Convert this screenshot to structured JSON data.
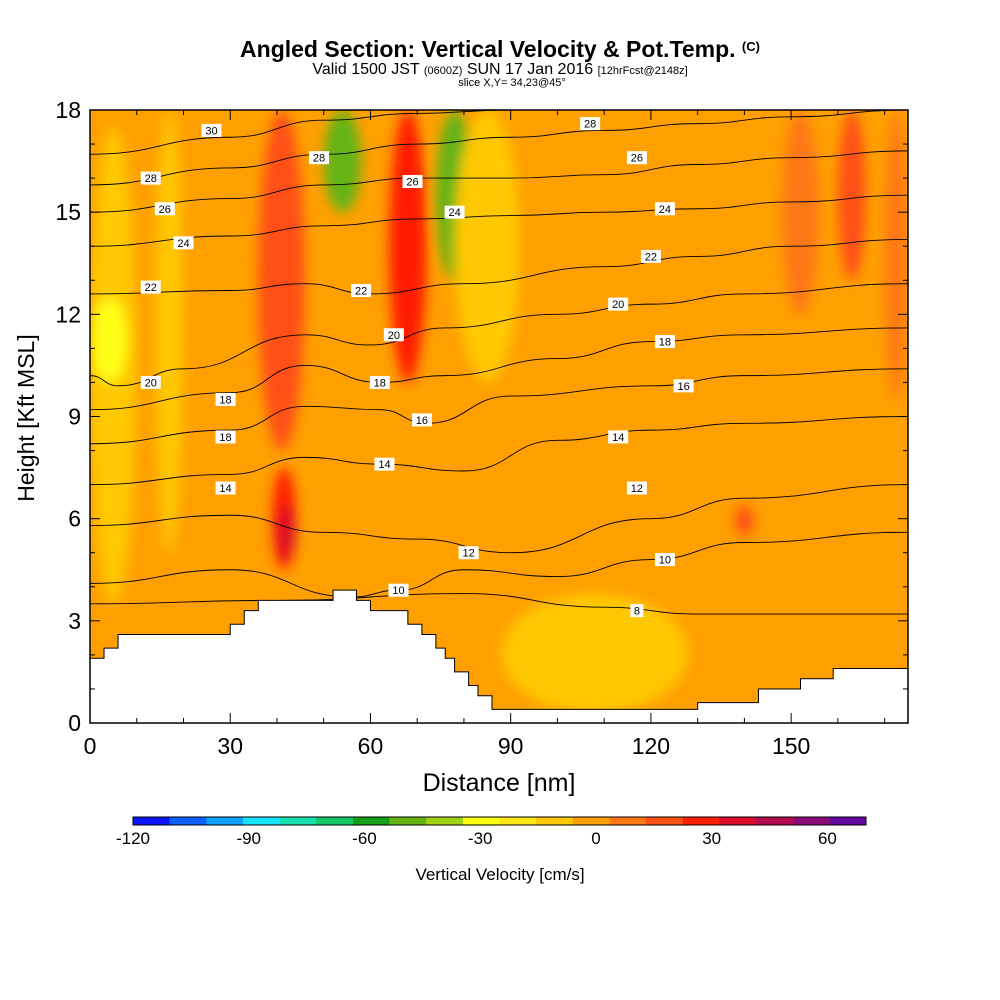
{
  "header": {
    "title_main": "Angled Section: Vertical Velocity & Pot.Temp.",
    "title_unit": "(C)",
    "subtitle_a": "Valid 1500 JST",
    "subtitle_b": "(0600Z)",
    "subtitle_c": "SUN 17 Jan 2016",
    "subtitle_d": "[12hrFcst@2148z]",
    "slice": "slice X,Y= 34,23@45°"
  },
  "chart_data": {
    "type": "heatmap",
    "xlabel": "Distance [nm]",
    "ylabel": "Height [Kft MSL]",
    "xlim": [
      0,
      175
    ],
    "ylim": [
      0,
      18
    ],
    "x_ticks": [
      0,
      30,
      60,
      90,
      120,
      150
    ],
    "y_ticks": [
      0,
      3,
      6,
      9,
      12,
      15,
      18
    ],
    "colorbar": {
      "label": "Vertical Velocity [cm/s]",
      "min": -120,
      "max": 70,
      "step": 10,
      "tick_values": [
        -120,
        -90,
        -60,
        -30,
        0,
        30,
        60
      ],
      "colors": [
        "#0a14ff",
        "#0a5fff",
        "#0aa0ff",
        "#14e6ff",
        "#14e0b0",
        "#14c864",
        "#14a014",
        "#64b414",
        "#a0d214",
        "#ffff14",
        "#ffe614",
        "#ffc800",
        "#ffa000",
        "#ff7814",
        "#ff5014",
        "#ff1e00",
        "#dc0a28",
        "#b40a50",
        "#8c0a78",
        "#640aa0"
      ]
    },
    "background_velocity_color": "#ffa000",
    "velocity_cells": [
      {
        "x": [
          0,
          10
        ],
        "y": [
          3.5,
          17.5
        ],
        "value": -5
      },
      {
        "x": [
          14,
          20
        ],
        "y": [
          5.0,
          18.0
        ],
        "value": -5
      },
      {
        "x": [
          0,
          8
        ],
        "y": [
          10.0,
          12.5
        ],
        "value": -25
      },
      {
        "x": [
          36,
          46
        ],
        "y": [
          8.0,
          18.0
        ],
        "value": 25
      },
      {
        "x": [
          39,
          44
        ],
        "y": [
          4.5,
          7.5
        ],
        "value": 30
      },
      {
        "x": [
          40,
          44
        ],
        "y": [
          4.8,
          6.4
        ],
        "value": 40
      },
      {
        "x": [
          50,
          58
        ],
        "y": [
          15.0,
          18.0
        ],
        "value": -45
      },
      {
        "x": [
          64,
          72
        ],
        "y": [
          10.0,
          18.0
        ],
        "value": 30
      },
      {
        "x": [
          74,
          82
        ],
        "y": [
          13.0,
          18.0
        ],
        "value": -50
      },
      {
        "x": [
          78,
          92
        ],
        "y": [
          10.0,
          18.0
        ],
        "value": -5
      },
      {
        "x": [
          88,
          128
        ],
        "y": [
          0.3,
          3.8
        ],
        "value": -5
      },
      {
        "x": [
          138,
          142
        ],
        "y": [
          5.5,
          6.4
        ],
        "value": 25
      },
      {
        "x": [
          148,
          156
        ],
        "y": [
          12.0,
          18.0
        ],
        "value": 15
      },
      {
        "x": [
          160,
          166
        ],
        "y": [
          13.0,
          18.0
        ],
        "value": 25
      },
      {
        "x": [
          170,
          175
        ],
        "y": [
          9.5,
          18.0
        ],
        "value": 15
      }
    ],
    "terrain_profile": {
      "x": [
        0,
        3,
        3,
        6,
        6,
        9,
        9,
        30,
        30,
        33,
        33,
        36,
        36,
        52,
        52,
        57,
        57,
        60,
        60,
        68,
        68,
        71,
        71,
        74,
        74,
        76,
        76,
        78,
        78,
        81,
        81,
        83,
        83,
        86,
        86,
        89,
        89,
        130,
        130,
        143,
        143,
        152,
        152,
        159,
        159,
        166,
        166,
        175
      ],
      "y": [
        1.9,
        1.9,
        2.2,
        2.2,
        2.6,
        2.6,
        2.6,
        2.6,
        2.9,
        2.9,
        3.3,
        3.3,
        3.6,
        3.6,
        3.9,
        3.9,
        3.6,
        3.6,
        3.3,
        3.3,
        2.9,
        2.9,
        2.6,
        2.6,
        2.2,
        2.2,
        1.9,
        1.9,
        1.5,
        1.5,
        1.1,
        1.1,
        0.8,
        0.8,
        0.4,
        0.4,
        0.4,
        0.4,
        0.6,
        0.6,
        1.0,
        1.0,
        1.3,
        1.3,
        1.6,
        1.6,
        1.6,
        1.6
      ]
    },
    "isotherms": [
      {
        "value": 8,
        "x": [
          0,
          40,
          80,
          110,
          130,
          175
        ],
        "y": [
          3.5,
          3.6,
          3.8,
          3.4,
          3.2,
          3.2
        ]
      },
      {
        "value": 10,
        "x": [
          0,
          30,
          56,
          66,
          80,
          100,
          120,
          140,
          175
        ],
        "y": [
          4.1,
          4.5,
          3.7,
          3.9,
          4.5,
          4.3,
          4.8,
          5.3,
          5.6
        ]
      },
      {
        "value": 12,
        "x": [
          0,
          30,
          50,
          70,
          90,
          120,
          140,
          175
        ],
        "y": [
          5.8,
          6.1,
          5.6,
          5.4,
          5.0,
          6.0,
          6.6,
          7.0
        ]
      },
      {
        "value": 14,
        "x": [
          0,
          30,
          46,
          62,
          80,
          100,
          120,
          140,
          175
        ],
        "y": [
          7.0,
          7.3,
          7.8,
          7.6,
          7.4,
          8.3,
          8.6,
          8.8,
          9.0
        ]
      },
      {
        "value": 16,
        "x": [
          0,
          30,
          46,
          62,
          72,
          90,
          120,
          140,
          175
        ],
        "y": [
          8.2,
          8.6,
          9.3,
          9.2,
          8.8,
          9.6,
          9.9,
          10.2,
          10.4
        ]
      },
      {
        "value": 18,
        "x": [
          0,
          30,
          46,
          62,
          76,
          100,
          120,
          140,
          175
        ],
        "y": [
          9.2,
          9.7,
          10.5,
          10.0,
          10.2,
          10.7,
          11.2,
          11.4,
          11.6
        ]
      },
      {
        "value": 20,
        "x": [
          0,
          6,
          20,
          46,
          60,
          76,
          100,
          120,
          140,
          175
        ],
        "y": [
          10.2,
          9.9,
          10.4,
          11.4,
          11.1,
          11.6,
          12.0,
          12.3,
          12.6,
          12.9
        ]
      },
      {
        "value": 22,
        "x": [
          0,
          30,
          46,
          60,
          80,
          110,
          130,
          150,
          175
        ],
        "y": [
          12.6,
          12.7,
          12.9,
          12.6,
          12.9,
          13.4,
          13.7,
          14.0,
          14.2
        ]
      },
      {
        "value": 24,
        "x": [
          0,
          30,
          50,
          70,
          90,
          110,
          130,
          150,
          175
        ],
        "y": [
          14.0,
          14.3,
          14.6,
          14.8,
          14.9,
          15.0,
          15.1,
          15.3,
          15.5
        ]
      },
      {
        "value": 26,
        "x": [
          0,
          30,
          50,
          70,
          90,
          110,
          130,
          150,
          175
        ],
        "y": [
          15.0,
          15.4,
          15.8,
          16.0,
          16.0,
          16.1,
          16.4,
          16.6,
          16.8
        ]
      },
      {
        "value": 28,
        "x": [
          0,
          30,
          50,
          70,
          90,
          110,
          130,
          150,
          175
        ],
        "y": [
          15.8,
          16.3,
          16.7,
          17.0,
          17.2,
          17.4,
          17.6,
          17.8,
          18.0
        ]
      },
      {
        "value": 30,
        "x": [
          0,
          30,
          50,
          70,
          90,
          130,
          175
        ],
        "y": [
          16.7,
          17.2,
          17.7,
          17.9,
          18.0,
          18.2,
          18.4
        ]
      }
    ],
    "isotherm_labels": [
      {
        "text": "30",
        "x": 26,
        "y": 17.4
      },
      {
        "text": "28",
        "x": 13,
        "y": 16.0
      },
      {
        "text": "28",
        "x": 49,
        "y": 16.6
      },
      {
        "text": "28",
        "x": 107,
        "y": 17.6
      },
      {
        "text": "26",
        "x": 16,
        "y": 15.1
      },
      {
        "text": "26",
        "x": 69,
        "y": 15.9
      },
      {
        "text": "26",
        "x": 117,
        "y": 16.6
      },
      {
        "text": "24",
        "x": 20,
        "y": 14.1
      },
      {
        "text": "24",
        "x": 78,
        "y": 15.0
      },
      {
        "text": "24",
        "x": 123,
        "y": 15.1
      },
      {
        "text": "22",
        "x": 13,
        "y": 12.8
      },
      {
        "text": "22",
        "x": 58,
        "y": 12.7
      },
      {
        "text": "22",
        "x": 120,
        "y": 13.7
      },
      {
        "text": "20",
        "x": 13,
        "y": 10.0
      },
      {
        "text": "20",
        "x": 65,
        "y": 11.4
      },
      {
        "text": "20",
        "x": 113,
        "y": 12.3
      },
      {
        "text": "18",
        "x": 29,
        "y": 9.5
      },
      {
        "text": "18",
        "x": 29,
        "y": 8.4
      },
      {
        "text": "18",
        "x": 62,
        "y": 10.0
      },
      {
        "text": "18",
        "x": 123,
        "y": 11.2
      },
      {
        "text": "16",
        "x": 71,
        "y": 8.9
      },
      {
        "text": "16",
        "x": 127,
        "y": 9.9
      },
      {
        "text": "14",
        "x": 29,
        "y": 6.9
      },
      {
        "text": "14",
        "x": 63,
        "y": 7.6
      },
      {
        "text": "14",
        "x": 113,
        "y": 8.4
      },
      {
        "text": "12",
        "x": 81,
        "y": 5.0
      },
      {
        "text": "12",
        "x": 117,
        "y": 6.9
      },
      {
        "text": "10",
        "x": 66,
        "y": 3.9
      },
      {
        "text": "10",
        "x": 123,
        "y": 4.8
      },
      {
        "text": "8",
        "x": 117,
        "y": 3.3
      }
    ]
  }
}
